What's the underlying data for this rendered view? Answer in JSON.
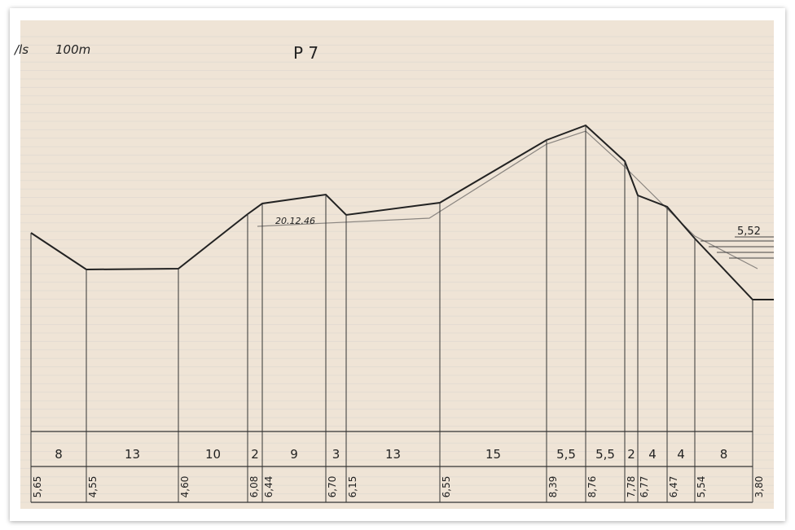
{
  "header": {
    "scale_left": "/ls",
    "scale": "100m",
    "title": "P 7"
  },
  "annotations": {
    "date": "20.12.46",
    "water_level": "5,52"
  },
  "profile": {
    "distances": [
      "8",
      "13",
      "10",
      "2",
      "9",
      "3",
      "13",
      "15",
      "5,5",
      "5,5",
      "2",
      "4",
      "4",
      "8"
    ],
    "elevations": [
      "5,65",
      "4,55",
      "4,60",
      "6,08",
      "6,44",
      "6,70",
      "6,15",
      "6,55",
      "8,39",
      "8,76",
      "7,78",
      "6,77",
      "6,47",
      "5,54",
      "3,80"
    ]
  }
}
